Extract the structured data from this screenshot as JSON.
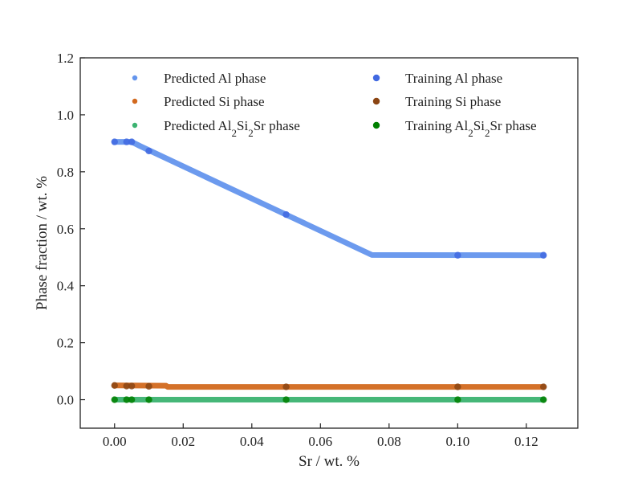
{
  "chart_data": {
    "type": "scatter",
    "xlabel": "Sr / wt. %",
    "ylabel": "Phase fraction / wt. %",
    "xlim": [
      -0.01,
      0.135
    ],
    "ylim": [
      -0.1,
      1.2
    ],
    "x_ticks": [
      0.0,
      0.02,
      0.04,
      0.06,
      0.08,
      0.1,
      0.12
    ],
    "x_tick_labels": [
      "0.00",
      "0.02",
      "0.04",
      "0.06",
      "0.08",
      "0.10",
      "0.12"
    ],
    "y_ticks": [
      0.0,
      0.2,
      0.4,
      0.6,
      0.8,
      1.0,
      1.2
    ],
    "y_tick_labels": [
      "0.0",
      "0.2",
      "0.4",
      "0.6",
      "0.8",
      "1.0",
      "1.2"
    ],
    "grid": false,
    "legend_placement": "top",
    "series": [
      {
        "key": "pred-al",
        "name": "Predicted Al phase",
        "kind": "predicted",
        "color": "#6495ED",
        "x": [
          0.0,
          0.005,
          0.0075,
          0.075,
          0.125
        ],
        "y": [
          0.905,
          0.905,
          0.89,
          0.508,
          0.507
        ]
      },
      {
        "key": "pred-si",
        "name": "Predicted Si phase",
        "kind": "predicted",
        "color": "#D2691E",
        "x": [
          0.0,
          0.015,
          0.0155,
          0.125
        ],
        "y": [
          0.05,
          0.049,
          0.045,
          0.045
        ]
      },
      {
        "key": "pred-alsisr",
        "name_parts": [
          "Predicted Al",
          "2",
          "Si",
          "2",
          "Sr phase"
        ],
        "kind": "predicted",
        "color": "#3CB371",
        "x": [
          0.0,
          0.125
        ],
        "y": [
          0.0,
          0.0
        ]
      },
      {
        "key": "train-al",
        "name": "Training Al phase",
        "kind": "training",
        "color": "#4169E1",
        "x": [
          0.0,
          0.0035,
          0.005,
          0.01,
          0.05,
          0.1,
          0.125
        ],
        "y": [
          0.905,
          0.905,
          0.905,
          0.873,
          0.65,
          0.507,
          0.507
        ]
      },
      {
        "key": "train-si",
        "name": "Training Si phase",
        "kind": "training",
        "color": "#8B4513",
        "x": [
          0.0,
          0.0035,
          0.005,
          0.01,
          0.05,
          0.1,
          0.125
        ],
        "y": [
          0.05,
          0.048,
          0.048,
          0.047,
          0.045,
          0.045,
          0.045
        ]
      },
      {
        "key": "train-alsisr",
        "name_parts": [
          "Training Al",
          "2",
          "Si",
          "2",
          "Sr phase"
        ],
        "kind": "training",
        "color": "#008000",
        "x": [
          0.0,
          0.0035,
          0.005,
          0.01,
          0.05,
          0.1,
          0.125
        ],
        "y": [
          0.0,
          0.0,
          0.0,
          0.0,
          0.0,
          0.0,
          0.0
        ]
      }
    ]
  }
}
